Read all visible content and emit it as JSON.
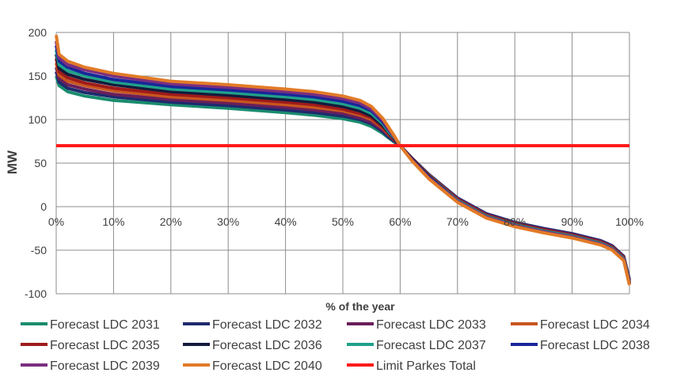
{
  "chart_data": {
    "type": "line",
    "xlabel": "% of the year",
    "ylabel": "MW",
    "xlim": [
      0,
      100
    ],
    "ylim": [
      -100,
      200
    ],
    "x_ticks": [
      0,
      10,
      20,
      30,
      40,
      50,
      60,
      70,
      80,
      90,
      100
    ],
    "x_tick_labels": [
      "0%",
      "10%",
      "20%",
      "30%",
      "40%",
      "50%",
      "60%",
      "70%",
      "80%",
      "90%",
      "100%"
    ],
    "y_ticks": [
      -100,
      -50,
      0,
      50,
      100,
      150,
      200
    ],
    "y_tick_labels": [
      "-100",
      "-50",
      "0",
      "50",
      "100",
      "150",
      "200"
    ],
    "grid": true,
    "legend_position": "bottom",
    "series": [
      {
        "name": "Forecast LDC 2031",
        "color": "#1a8c6e",
        "x": [
          0,
          0.5,
          2,
          5,
          10,
          20,
          30,
          40,
          45,
          50,
          53,
          55,
          57,
          58,
          59,
          60,
          62,
          65,
          70,
          75,
          80,
          85,
          90,
          95,
          97,
          99,
          100
        ],
        "y": [
          150,
          139,
          132,
          127,
          122,
          117,
          113,
          108,
          105,
          101,
          97,
          92,
          84,
          79,
          74,
          70,
          56,
          37,
          9,
          -9,
          -19,
          -26,
          -32,
          -40,
          -46,
          -58,
          -85
        ]
      },
      {
        "name": "Forecast LDC 2032",
        "color": "#1f2a6e",
        "x": [
          0,
          0.5,
          2,
          5,
          10,
          20,
          30,
          40,
          45,
          50,
          53,
          55,
          57,
          58,
          59,
          60,
          62,
          65,
          70,
          75,
          80,
          85,
          90,
          95,
          97,
          99,
          100
        ],
        "y": [
          155,
          143,
          136,
          131,
          126,
          120,
          116,
          111,
          108,
          104,
          100,
          95,
          86,
          80,
          75,
          70,
          56,
          37,
          10,
          -8,
          -18,
          -25,
          -31,
          -39,
          -45,
          -57,
          -84
        ]
      },
      {
        "name": "Forecast LDC 2033",
        "color": "#6b1f5a",
        "x": [
          0,
          0.5,
          2,
          5,
          10,
          20,
          30,
          40,
          45,
          50,
          53,
          55,
          57,
          58,
          59,
          60,
          62,
          65,
          70,
          75,
          80,
          85,
          90,
          95,
          97,
          99,
          100
        ],
        "y": [
          160,
          147,
          140,
          135,
          129,
          123,
          119,
          114,
          111,
          107,
          102,
          97,
          88,
          82,
          76,
          70,
          56,
          36,
          9,
          -9,
          -19,
          -26,
          -32,
          -40,
          -46,
          -58,
          -86
        ]
      },
      {
        "name": "Forecast LDC 2034",
        "color": "#c8561e",
        "x": [
          0,
          0.5,
          2,
          5,
          10,
          20,
          30,
          40,
          45,
          50,
          53,
          55,
          57,
          58,
          59,
          60,
          62,
          65,
          70,
          75,
          80,
          85,
          90,
          95,
          97,
          99,
          100
        ],
        "y": [
          165,
          151,
          144,
          139,
          133,
          126,
          122,
          117,
          114,
          110,
          105,
          100,
          90,
          83,
          77,
          70,
          55,
          36,
          8,
          -10,
          -20,
          -27,
          -33,
          -41,
          -47,
          -59,
          -87
        ]
      },
      {
        "name": "Forecast LDC 2035",
        "color": "#9e1b1b",
        "x": [
          0,
          0.5,
          2,
          5,
          10,
          20,
          30,
          40,
          45,
          50,
          53,
          55,
          57,
          58,
          59,
          60,
          62,
          65,
          70,
          75,
          80,
          85,
          90,
          95,
          97,
          99,
          100
        ],
        "y": [
          170,
          155,
          148,
          142,
          136,
          129,
          125,
          120,
          117,
          112,
          107,
          102,
          91,
          84,
          77,
          70,
          55,
          35,
          8,
          -10,
          -20,
          -27,
          -33,
          -41,
          -47,
          -59,
          -87
        ]
      },
      {
        "name": "Forecast LDC 2036",
        "color": "#141b3c",
        "x": [
          0,
          0.5,
          2,
          5,
          10,
          20,
          30,
          40,
          45,
          50,
          53,
          55,
          57,
          58,
          59,
          60,
          62,
          65,
          70,
          75,
          80,
          85,
          90,
          95,
          97,
          99,
          100
        ],
        "y": [
          175,
          159,
          152,
          146,
          140,
          132,
          128,
          123,
          120,
          115,
          110,
          104,
          93,
          85,
          78,
          70,
          55,
          35,
          7,
          -11,
          -21,
          -28,
          -34,
          -42,
          -48,
          -60,
          -88
        ]
      },
      {
        "name": "Forecast LDC 2037",
        "color": "#20a08a",
        "x": [
          0,
          0.5,
          2,
          5,
          10,
          20,
          30,
          40,
          45,
          50,
          53,
          55,
          57,
          58,
          59,
          60,
          62,
          65,
          70,
          75,
          80,
          85,
          90,
          95,
          97,
          99,
          100
        ],
        "y": [
          180,
          163,
          156,
          150,
          143,
          135,
          131,
          126,
          123,
          118,
          113,
          107,
          95,
          86,
          79,
          70,
          54,
          34,
          7,
          -11,
          -21,
          -28,
          -34,
          -42,
          -48,
          -60,
          -88
        ]
      },
      {
        "name": "Forecast LDC 2038",
        "color": "#1a2699",
        "x": [
          0,
          0.5,
          2,
          5,
          10,
          20,
          30,
          40,
          45,
          50,
          53,
          55,
          57,
          58,
          59,
          60,
          62,
          65,
          70,
          75,
          80,
          85,
          90,
          95,
          97,
          99,
          100
        ],
        "y": [
          185,
          167,
          160,
          153,
          146,
          138,
          134,
          129,
          126,
          121,
          116,
          110,
          97,
          88,
          80,
          70,
          54,
          34,
          6,
          -12,
          -22,
          -29,
          -35,
          -43,
          -49,
          -61,
          -89
        ]
      },
      {
        "name": "Forecast LDC 2039",
        "color": "#7b2f80",
        "x": [
          0,
          0.5,
          2,
          5,
          10,
          20,
          30,
          40,
          45,
          50,
          53,
          55,
          57,
          58,
          59,
          60,
          62,
          65,
          70,
          75,
          80,
          85,
          90,
          95,
          97,
          99,
          100
        ],
        "y": [
          190,
          171,
          163,
          157,
          150,
          141,
          137,
          132,
          129,
          124,
          119,
          112,
          99,
          89,
          80,
          70,
          54,
          33,
          6,
          -12,
          -22,
          -29,
          -35,
          -43,
          -49,
          -61,
          -89
        ]
      },
      {
        "name": "Forecast LDC 2040",
        "color": "#e27b27",
        "x": [
          0,
          0.5,
          2,
          5,
          10,
          20,
          30,
          40,
          45,
          50,
          53,
          55,
          57,
          58,
          59,
          60,
          62,
          65,
          70,
          75,
          80,
          85,
          90,
          95,
          97,
          99,
          100
        ],
        "y": [
          197,
          175,
          167,
          160,
          153,
          144,
          140,
          135,
          132,
          127,
          122,
          115,
          101,
          91,
          81,
          70,
          53,
          32,
          5,
          -13,
          -23,
          -30,
          -36,
          -44,
          -50,
          -62,
          -90
        ]
      },
      {
        "name": "Limit Parkes Total",
        "color": "#ff1a1a",
        "x": [
          0,
          100
        ],
        "y": [
          70,
          70
        ]
      }
    ]
  }
}
